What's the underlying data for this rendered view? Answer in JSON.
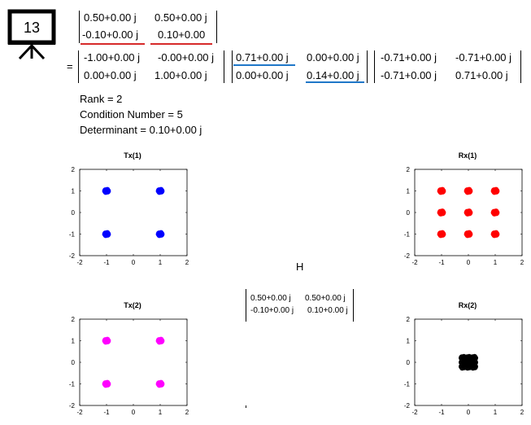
{
  "slide_icon": {
    "number": "13"
  },
  "top_matrix": {
    "rows": [
      [
        "0.50+0.00 j",
        "0.50+0.00 j"
      ],
      [
        "-0.10+0.00 j",
        "0.10+0.00"
      ]
    ]
  },
  "equals": "=",
  "svd": {
    "U": [
      [
        "-1.00+0.00 j",
        "-0.00+0.00 j"
      ],
      [
        "0.00+0.00 j",
        "1.00+0.00 j"
      ]
    ],
    "S": [
      [
        "0.71+0.00 j",
        "0.00+0.00 j"
      ],
      [
        "0.00+0.00 j",
        "0.14+0.00 j"
      ]
    ],
    "V": [
      [
        "-0.71+0.00 j",
        "-0.71+0.00 j"
      ],
      [
        "-0.71+0.00 j",
        "0.71+0.00 j"
      ]
    ]
  },
  "stats": {
    "rank": "Rank = 2",
    "condition": "Condition Number = 5",
    "determinant": "Determinant = 0.10+0.00 j"
  },
  "h_label": "H",
  "h_matrix": [
    [
      "0.50+0.00 j",
      "0.50+0.00 j"
    ],
    [
      "-0.10+0.00 j",
      "0.10+0.00 j"
    ]
  ],
  "colors": {
    "tx1": "#0000ff",
    "tx2": "#ff00ff",
    "rx1": "#ff0000",
    "rx2": "#000000",
    "red_underline": "#d62a2a",
    "blue_underline": "#1f77c8"
  },
  "chart_data": [
    {
      "type": "scatter",
      "title": "Tx(1)",
      "xlim": [
        -2,
        2
      ],
      "ylim": [
        -2,
        2
      ],
      "xticks": [
        "-2",
        "-1",
        "0",
        "1",
        "2"
      ],
      "yticks": [
        "2",
        "1",
        "0",
        "-1",
        "-2"
      ],
      "color": "#0000ff",
      "points": [
        [
          -1,
          1
        ],
        [
          1,
          1
        ],
        [
          -1,
          -1
        ],
        [
          1,
          -1
        ]
      ]
    },
    {
      "type": "scatter",
      "title": "Rx(1)",
      "xlim": [
        -2,
        2
      ],
      "ylim": [
        -2,
        2
      ],
      "xticks": [
        "-2",
        "-1",
        "0",
        "1",
        "2"
      ],
      "yticks": [
        "2",
        "1",
        "0",
        "-1",
        "-2"
      ],
      "color": "#ff0000",
      "points": [
        [
          -1,
          1
        ],
        [
          0,
          1
        ],
        [
          1,
          1
        ],
        [
          -1,
          0
        ],
        [
          0,
          0
        ],
        [
          1,
          0
        ],
        [
          -1,
          -1
        ],
        [
          0,
          -1
        ],
        [
          1,
          -1
        ]
      ]
    },
    {
      "type": "scatter",
      "title": "Tx(2)",
      "xlim": [
        -2,
        2
      ],
      "ylim": [
        -2,
        2
      ],
      "xticks": [
        "-2",
        "-1",
        "0",
        "1",
        "2"
      ],
      "yticks": [
        "2",
        "1",
        "0",
        "-1",
        "-2"
      ],
      "color": "#ff00ff",
      "points": [
        [
          -1,
          1
        ],
        [
          1,
          1
        ],
        [
          -1,
          -1
        ],
        [
          1,
          -1
        ]
      ]
    },
    {
      "type": "scatter",
      "title": "Rx(2)",
      "xlim": [
        -2,
        2
      ],
      "ylim": [
        -2,
        2
      ],
      "xticks": [
        "-2",
        "-1",
        "0",
        "1",
        "2"
      ],
      "yticks": [
        "2",
        "1",
        "0",
        "-1",
        "-2"
      ],
      "color": "#000000",
      "points": [
        [
          -0.2,
          0.2
        ],
        [
          0,
          0.2
        ],
        [
          0.2,
          0.2
        ],
        [
          -0.2,
          0
        ],
        [
          0,
          0
        ],
        [
          0.2,
          0
        ],
        [
          -0.2,
          -0.2
        ],
        [
          0,
          -0.2
        ],
        [
          0.2,
          -0.2
        ]
      ]
    }
  ]
}
